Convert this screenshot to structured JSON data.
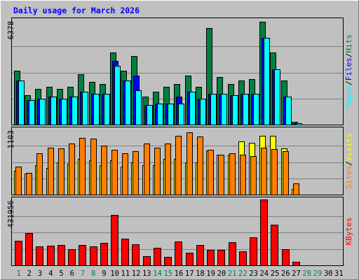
{
  "chart_data": {
    "type": "bar",
    "title": "Daily usage for March 2026",
    "categories": [
      "1",
      "2",
      "3",
      "4",
      "5",
      "6",
      "7",
      "8",
      "9",
      "10",
      "11",
      "12",
      "13",
      "14",
      "15",
      "16",
      "17",
      "18",
      "19",
      "20",
      "21",
      "22",
      "23",
      "24",
      "25",
      "26",
      "27",
      "28",
      "29",
      "30",
      "31"
    ],
    "weekend_days": [
      "1",
      "7",
      "8",
      "14",
      "15",
      "21",
      "22",
      "28",
      "29"
    ],
    "panels": [
      {
        "id": "traffic",
        "ymax": 6378,
        "ytick_label": "6378",
        "series": [
          {
            "name": "Hits",
            "color": "#008040",
            "values": [
              3300,
              1800,
              2200,
              2300,
              2200,
              2300,
              3100,
              2600,
              2500,
              4400,
              3300,
              4200,
              1700,
              2000,
              2300,
              2500,
              3000,
              2300,
              5900,
              2900,
              2500,
              2700,
              2800,
              6300,
              4400,
              2700,
              150,
              0,
              0,
              0,
              0
            ]
          },
          {
            "name": "Files",
            "color": "#0000ff",
            "values": [
              2700,
              1500,
              1600,
              1700,
              1600,
              1700,
              2000,
              1900,
              1900,
              3900,
              2700,
              3000,
              1200,
              1300,
              1300,
              1700,
              2000,
              1600,
              1900,
              1900,
              1800,
              1900,
              1900,
              5300,
              3400,
              1700,
              100,
              0,
              0,
              0,
              0
            ]
          },
          {
            "name": "Pages",
            "color": "#00ffff",
            "values": [
              2700,
              1500,
              1600,
              1700,
              1600,
              1700,
              2000,
              1900,
              1900,
              3600,
              2700,
              2100,
              1200,
              1300,
              1300,
              1300,
              2000,
              1600,
              1900,
              1900,
              1800,
              1900,
              1900,
              5300,
              3400,
              1700,
              100,
              0,
              0,
              0,
              0
            ]
          }
        ]
      },
      {
        "id": "visits",
        "ymax": 1103,
        "ytick_label": "1103",
        "series": [
          {
            "name": "Visits",
            "color": "#ffff00",
            "values": [
              400,
              350,
              500,
              450,
              550,
              520,
              600,
              580,
              500,
              580,
              480,
              550,
              500,
              500,
              600,
              600,
              550,
              550,
              750,
              680,
              680,
              900,
              880,
              1000,
              1000,
              780,
              100,
              0,
              0,
              0,
              0
            ]
          },
          {
            "name": "Sites",
            "color": "#ff8000",
            "values": [
              470,
              370,
              700,
              790,
              780,
              870,
              960,
              950,
              830,
              760,
              700,
              740,
              870,
              800,
              870,
              1000,
              1050,
              980,
              760,
              680,
              700,
              680,
              650,
              790,
              770,
              730,
              190,
              0,
              0,
              0,
              0
            ]
          }
        ]
      },
      {
        "id": "kbytes",
        "ymax": 431956,
        "ytick_label": "431956",
        "series": [
          {
            "name": "KBytes",
            "color": "#ff0000",
            "values": [
              160000,
              210000,
              125000,
              130000,
              135000,
              105000,
              135000,
              125000,
              145000,
              330000,
              175000,
              140000,
              60000,
              115000,
              55000,
              155000,
              85000,
              135000,
              100000,
              100000,
              150000,
              90000,
              185000,
              431956,
              265000,
              105000,
              25000,
              0,
              0,
              0,
              0
            ]
          }
        ]
      }
    ]
  }
}
